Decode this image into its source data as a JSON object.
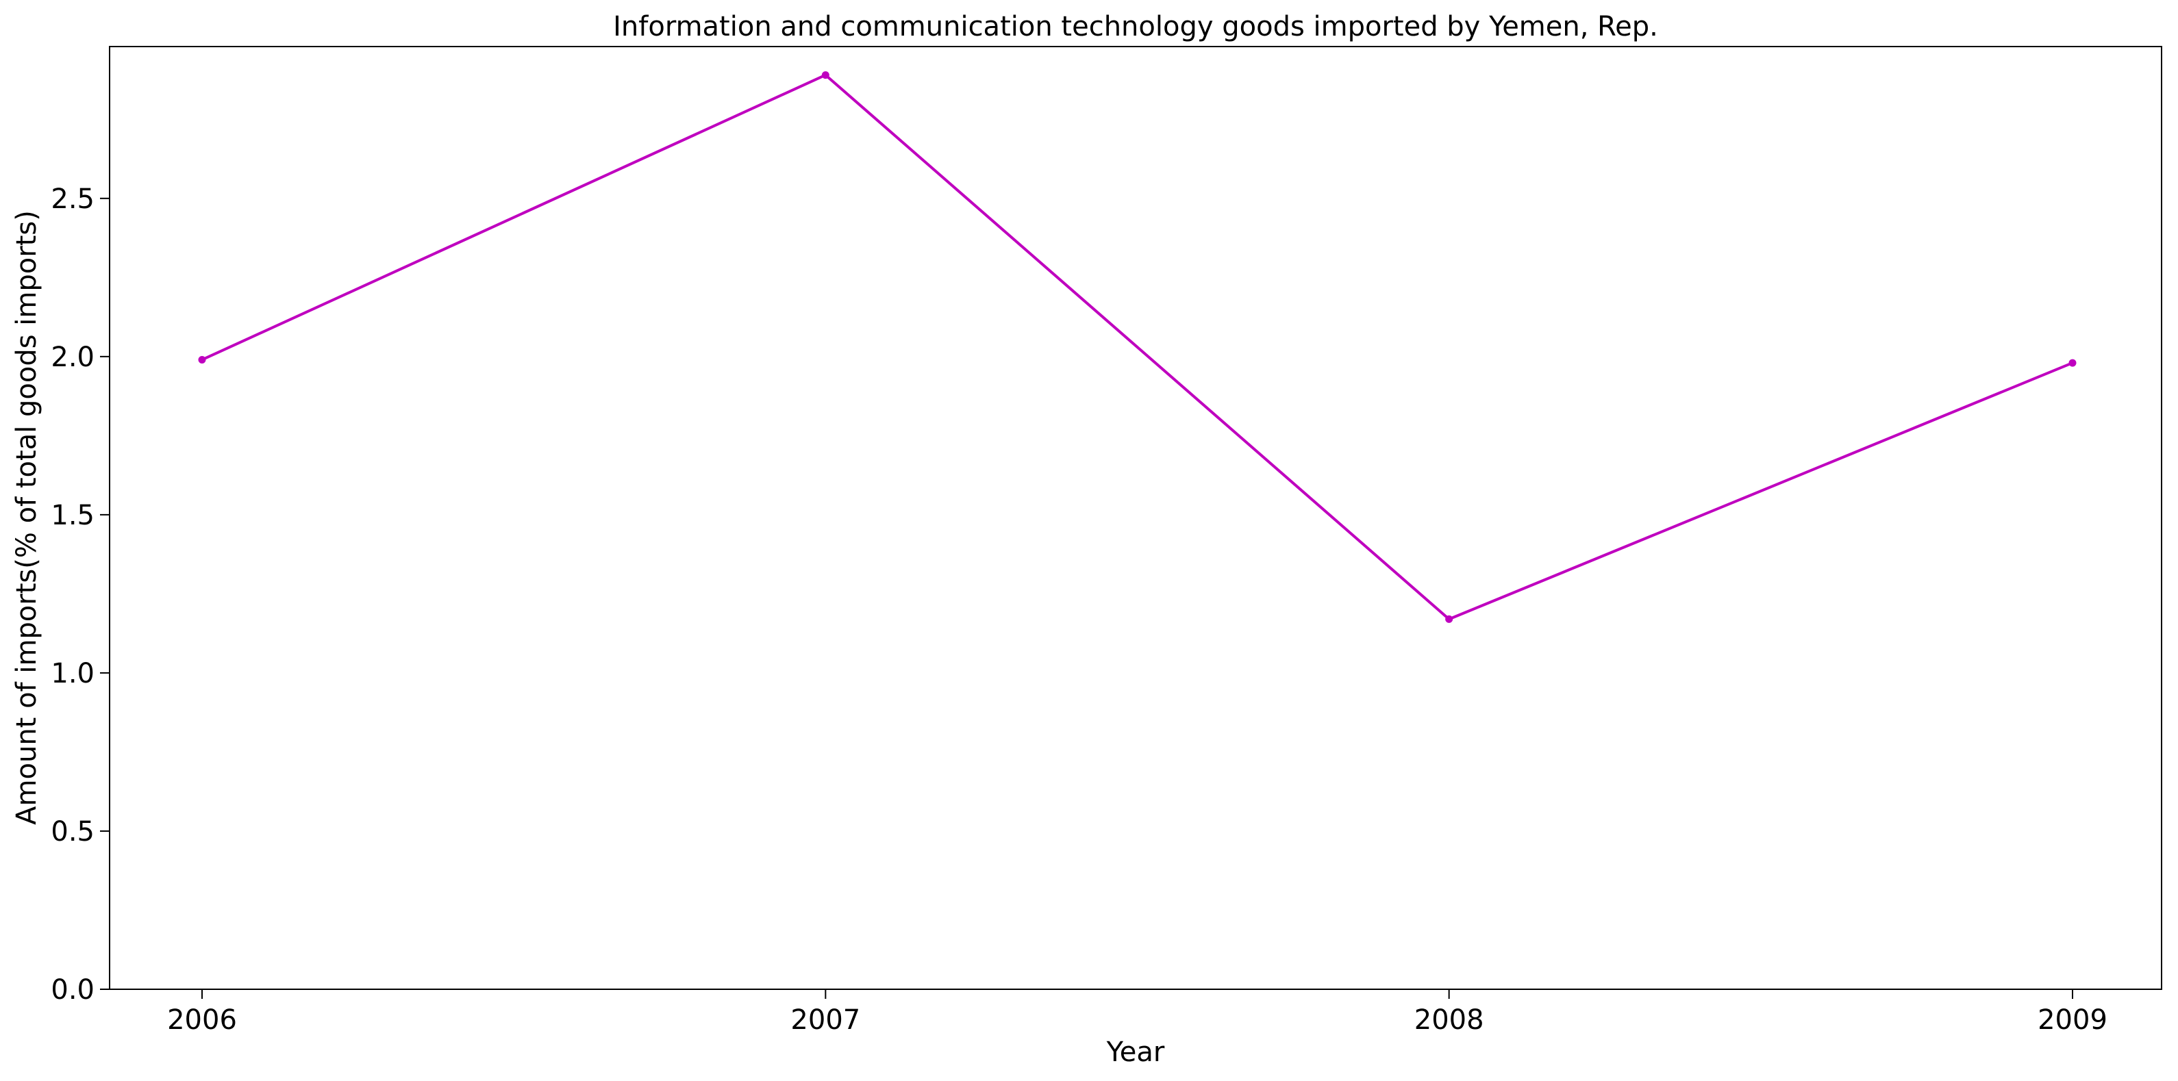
{
  "chart_data": {
    "type": "line",
    "title": "Information and communication technology goods imported by Yemen, Rep.",
    "xlabel": "Year",
    "ylabel": "Amount of imports(% of total goods imports)",
    "categories": [
      "2006",
      "2007",
      "2008",
      "2009"
    ],
    "x_tick_labels": [
      "2006",
      "2007",
      "2008",
      "2009"
    ],
    "y_ticks": [
      0.0,
      0.5,
      1.0,
      1.5,
      2.0,
      2.5
    ],
    "y_tick_labels": [
      "0.0",
      "0.5",
      "1.0",
      "1.5",
      "2.0",
      "2.5"
    ],
    "ylim": [
      0,
      2.98
    ],
    "grid": false,
    "legend": "none",
    "series": [
      {
        "color": "#bf00bf",
        "values": [
          1.99,
          2.89,
          1.17,
          1.98
        ]
      }
    ]
  }
}
